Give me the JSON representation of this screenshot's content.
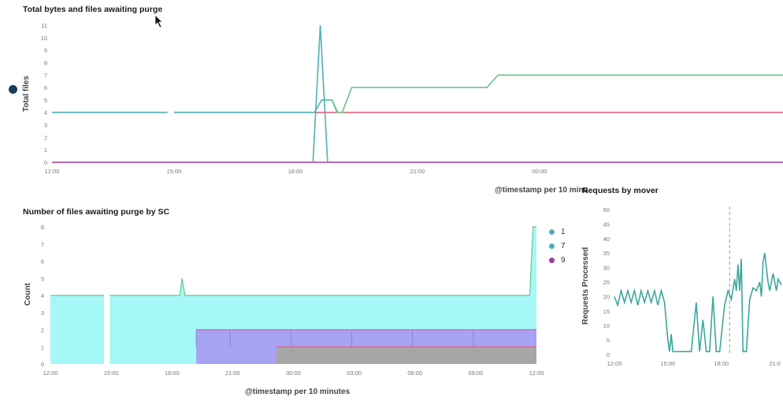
{
  "colors": {
    "teal": "#4fb0b4",
    "green": "#69c68a",
    "purple": "#9b3ca0",
    "pink": "#e0677f",
    "cyan_fill": "#a6f7f7",
    "lavender_fill": "#a7a2f3",
    "grey_fill": "#a6a6a6",
    "mover_line": "#3aa89b",
    "axis_tick": "#777777"
  },
  "chart_data": [
    {
      "id": "purge-totals",
      "type": "line",
      "title": "Total bytes and files awaiting purge",
      "ylabel": "Total files",
      "xlabel": "@timestamp per 10 minu",
      "ylim": [
        0,
        11
      ],
      "xlim": [
        0,
        100
      ],
      "yticks": [
        "0",
        "1",
        "2",
        "3",
        "4",
        "5",
        "6",
        "7",
        "8",
        "9",
        "10",
        "11"
      ],
      "xticks": [
        {
          "label": "12:00",
          "x": 0
        },
        {
          "label": "15:00",
          "x": 16.7
        },
        {
          "label": "18:00",
          "x": 33.3
        },
        {
          "label": "21:00",
          "x": 50
        },
        {
          "label": "00:00",
          "x": 66.7
        }
      ],
      "grid": false,
      "series": [
        {
          "color": "purple",
          "points": [
            [
              0,
              0
            ],
            [
              100,
              0
            ]
          ]
        },
        {
          "color": "teal",
          "points": [
            [
              35.7,
              0
            ],
            [
              36.7,
              11
            ],
            [
              37.7,
              0
            ]
          ]
        },
        {
          "color": "pink",
          "points": [
            [
              0,
              4
            ],
            [
              15.8,
              4
            ],
            [
              null,
              null
            ],
            [
              16.7,
              4
            ],
            [
              100,
              4
            ]
          ]
        },
        {
          "color": "teal",
          "points": [
            [
              0,
              4
            ],
            [
              15.8,
              4
            ],
            [
              null,
              null
            ],
            [
              16.7,
              4
            ],
            [
              35.9,
              4
            ],
            [
              36.9,
              5
            ],
            [
              38.3,
              5
            ],
            [
              39.0,
              4
            ]
          ]
        },
        {
          "color": "green",
          "points": [
            [
              38.3,
              5
            ],
            [
              39.1,
              4
            ],
            [
              39.7,
              4
            ],
            [
              41,
              6
            ],
            [
              59.5,
              6
            ],
            [
              61,
              7
            ],
            [
              100,
              7
            ]
          ]
        }
      ]
    },
    {
      "id": "files-by-sc",
      "type": "area",
      "title": "Number of files awaiting purge by SC",
      "ylabel": "Count",
      "xlabel": "@timestamp per 10 minutes",
      "ylim": [
        0,
        8
      ],
      "xlim": [
        0,
        100
      ],
      "yticks": [
        "0",
        "1",
        "2",
        "3",
        "4",
        "5",
        "6",
        "7",
        "8"
      ],
      "xticks": [
        {
          "label": "12:00",
          "x": 0
        },
        {
          "label": "15:00",
          "x": 12.5
        },
        {
          "label": "18:00",
          "x": 25
        },
        {
          "label": "21:00",
          "x": 37.5
        },
        {
          "label": "00:00",
          "x": 50
        },
        {
          "label": "03:00",
          "x": 62.5
        },
        {
          "label": "06:00",
          "x": 75
        },
        {
          "label": "09:00",
          "x": 87.5
        },
        {
          "label": "12:00",
          "x": 100
        }
      ],
      "legend": {
        "position": "right",
        "entries": [
          {
            "label": "1",
            "color": "teal"
          },
          {
            "label": "7",
            "color": "teal"
          },
          {
            "label": "9",
            "color": "purple"
          }
        ]
      },
      "series": [
        {
          "color": "cyan_fill",
          "stroke": "green",
          "points": [
            [
              0,
              4
            ],
            [
              11.0,
              4
            ],
            [
              null,
              null
            ],
            [
              12.2,
              4
            ],
            [
              26.6,
              4
            ],
            [
              27.1,
              5
            ],
            [
              27.7,
              4
            ],
            [
              98.6,
              4
            ],
            [
              99.3,
              8
            ],
            [
              100,
              8
            ]
          ]
        },
        {
          "color": "lavender_fill",
          "stroke": "pink",
          "base": 0,
          "points": [
            [
              30.0,
              2
            ],
            [
              100,
              2
            ]
          ],
          "segments_x": [
            30.0,
            37.0,
            49.5,
            62.0,
            74.5,
            87.0
          ]
        },
        {
          "color": "grey_fill",
          "stroke": "pink",
          "base": 0,
          "points": [
            [
              46.5,
              1
            ],
            [
              100,
              1
            ]
          ]
        }
      ]
    },
    {
      "id": "requests-by-mover",
      "type": "line",
      "title": "Requests by mover",
      "ylabel": "Requests Processed",
      "ylim": [
        0,
        50
      ],
      "xlim": [
        0,
        100
      ],
      "yticks": [
        "0",
        "5",
        "10",
        "15",
        "20",
        "25",
        "30",
        "35",
        "40",
        "45",
        "50"
      ],
      "xticks": [
        {
          "label": "12:00",
          "x": 0
        },
        {
          "label": "15:00",
          "x": 32
        },
        {
          "label": "18:00",
          "x": 64
        },
        {
          "label": "21:0",
          "x": 96
        }
      ],
      "marker_x": 69,
      "series": [
        {
          "color": "mover_line",
          "points": [
            [
              0,
              20
            ],
            [
              2,
              17
            ],
            [
              4,
              22
            ],
            [
              6,
              18
            ],
            [
              8,
              22
            ],
            [
              10,
              18
            ],
            [
              12,
              22
            ],
            [
              14,
              17
            ],
            [
              16,
              22
            ],
            [
              18,
              18
            ],
            [
              20,
              22
            ],
            [
              22,
              18
            ],
            [
              24,
              22
            ],
            [
              26,
              17
            ],
            [
              28,
              22
            ],
            [
              30,
              18
            ],
            [
              32,
              5
            ],
            [
              33,
              1
            ],
            [
              34,
              7
            ],
            [
              35,
              1
            ],
            [
              37,
              1
            ],
            [
              40,
              1
            ],
            [
              43,
              1
            ],
            [
              46,
              1
            ],
            [
              49,
              18
            ],
            [
              51,
              1
            ],
            [
              53,
              12
            ],
            [
              55,
              1
            ],
            [
              57,
              1
            ],
            [
              59,
              20
            ],
            [
              61,
              1
            ],
            [
              63,
              1
            ],
            [
              66,
              17
            ],
            [
              68,
              22
            ],
            [
              70,
              19
            ],
            [
              72,
              26
            ],
            [
              73,
              22
            ],
            [
              74,
              31
            ],
            [
              75,
              22
            ],
            [
              76,
              33
            ],
            [
              77,
              1
            ],
            [
              78,
              1
            ],
            [
              79,
              1
            ],
            [
              81,
              19
            ],
            [
              83,
              23
            ],
            [
              85,
              22
            ],
            [
              87,
              25
            ],
            [
              88,
              20
            ],
            [
              89,
              32
            ],
            [
              90,
              35
            ],
            [
              91,
              30
            ],
            [
              92,
              25
            ],
            [
              93,
              22
            ],
            [
              95,
              28
            ],
            [
              97,
              22
            ],
            [
              98,
              26
            ],
            [
              99,
              25
            ],
            [
              100,
              24
            ]
          ]
        }
      ]
    }
  ]
}
